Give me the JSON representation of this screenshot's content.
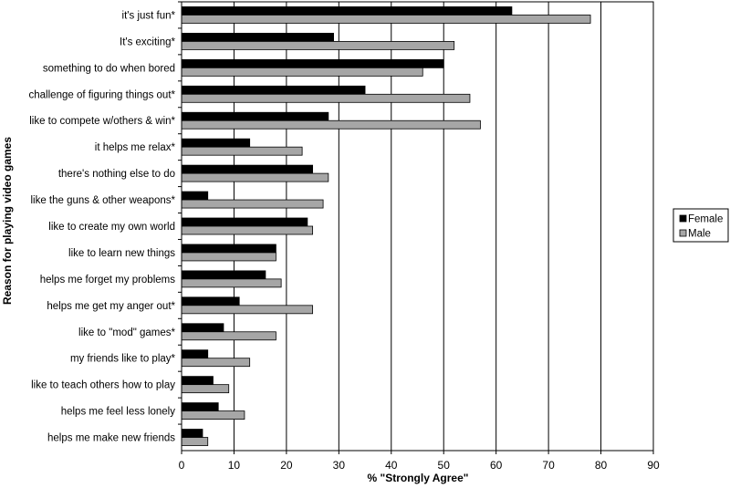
{
  "chart_data": {
    "type": "bar",
    "orientation": "horizontal",
    "xlabel": "% \"Strongly Agree\"",
    "ylabel": "Reason for playing video games",
    "xlim": [
      0,
      90
    ],
    "xticks": [
      0,
      10,
      20,
      30,
      40,
      50,
      60,
      70,
      80,
      90
    ],
    "grid": "vertical",
    "legend_position": "right",
    "categories": [
      "it's just fun*",
      "It's exciting*",
      "something to do when bored",
      "challenge of figuring things out*",
      "like to compete w/others & win*",
      "it helps me relax*",
      "there's nothing else to do",
      "like the guns & other weapons*",
      "like to create my own world",
      "like to learn new things",
      "helps me forget my problems",
      "helps me get my anger out*",
      "like to \"mod\" games*",
      "my friends like to play*",
      "like to teach others how to play",
      "helps me feel less lonely",
      "helps me make new friends"
    ],
    "series": [
      {
        "name": "Female",
        "color": "#000000",
        "values": [
          63,
          29,
          50,
          35,
          28,
          13,
          25,
          5,
          24,
          18,
          16,
          11,
          8,
          5,
          6,
          7,
          4
        ]
      },
      {
        "name": "Male",
        "color": "#a6a6a6",
        "values": [
          78,
          52,
          46,
          55,
          57,
          23,
          28,
          27,
          25,
          18,
          19,
          25,
          18,
          13,
          9,
          12,
          5
        ]
      }
    ]
  }
}
